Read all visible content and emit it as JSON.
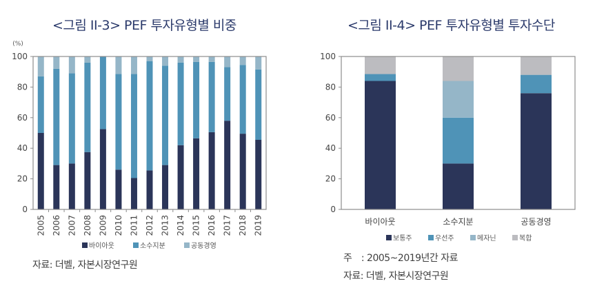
{
  "colors": {
    "title": "#2b3a6b",
    "dark": "#2b3559",
    "mid": "#4f93b7",
    "light": "#95b6c8",
    "grey": "#bcbcc0",
    "axis": "#8c8c8c"
  },
  "chart_data": [
    {
      "type": "bar",
      "stacked": true,
      "title": "<그림 II-3> PEF 투자유형별 비중",
      "ylabel": "(%)",
      "ylim": [
        0,
        100
      ],
      "yticks": [
        "0",
        "20",
        "40",
        "60",
        "80",
        "100"
      ],
      "categories": [
        "2005",
        "2006",
        "2007",
        "2008",
        "2009",
        "2010",
        "2011",
        "2012",
        "2013",
        "2014",
        "2015",
        "2016",
        "2017",
        "2018",
        "2019"
      ],
      "series": [
        {
          "name": "바이아웃",
          "color": "#2b3559",
          "values": [
            50,
            29,
            30,
            37.5,
            52.5,
            26,
            20.5,
            25.5,
            29,
            42,
            46.5,
            50.5,
            58,
            49.5,
            45.5
          ]
        },
        {
          "name": "소수지분",
          "color": "#4f93b7",
          "values": [
            37,
            63,
            59,
            58.5,
            47.5,
            62.5,
            68,
            71.5,
            65,
            54,
            50,
            46,
            35,
            45,
            46
          ]
        },
        {
          "name": "공동경영",
          "color": "#95b6c8",
          "values": [
            13,
            8,
            11,
            4,
            0,
            11.5,
            11.5,
            3,
            6,
            4,
            3.5,
            3.5,
            7,
            5.5,
            8.5
          ]
        }
      ],
      "legend": "bottom",
      "source": "자료: 더벨, 자본시장연구원"
    },
    {
      "type": "bar",
      "stacked": true,
      "title": "<그림 II-4> PEF 투자유형별 투자수단",
      "ylim": [
        0,
        100
      ],
      "yticks": [
        "0",
        "20",
        "40",
        "60",
        "80",
        "100"
      ],
      "categories": [
        "바이아웃",
        "소수지분",
        "공동경영"
      ],
      "series": [
        {
          "name": "보통주",
          "color": "#2b3559",
          "values": [
            84,
            30,
            76
          ]
        },
        {
          "name": "우선주",
          "color": "#4f93b7",
          "values": [
            4.5,
            30,
            12
          ]
        },
        {
          "name": "메자닌",
          "color": "#95b6c8",
          "values": [
            0,
            24,
            0
          ]
        },
        {
          "name": "복합",
          "color": "#bcbcc0",
          "values": [
            11.5,
            16,
            12
          ]
        }
      ],
      "legend": "bottom",
      "note": "주　: 2005~2019년간 자료",
      "source": "자료: 더벨, 자본시장연구원"
    }
  ]
}
